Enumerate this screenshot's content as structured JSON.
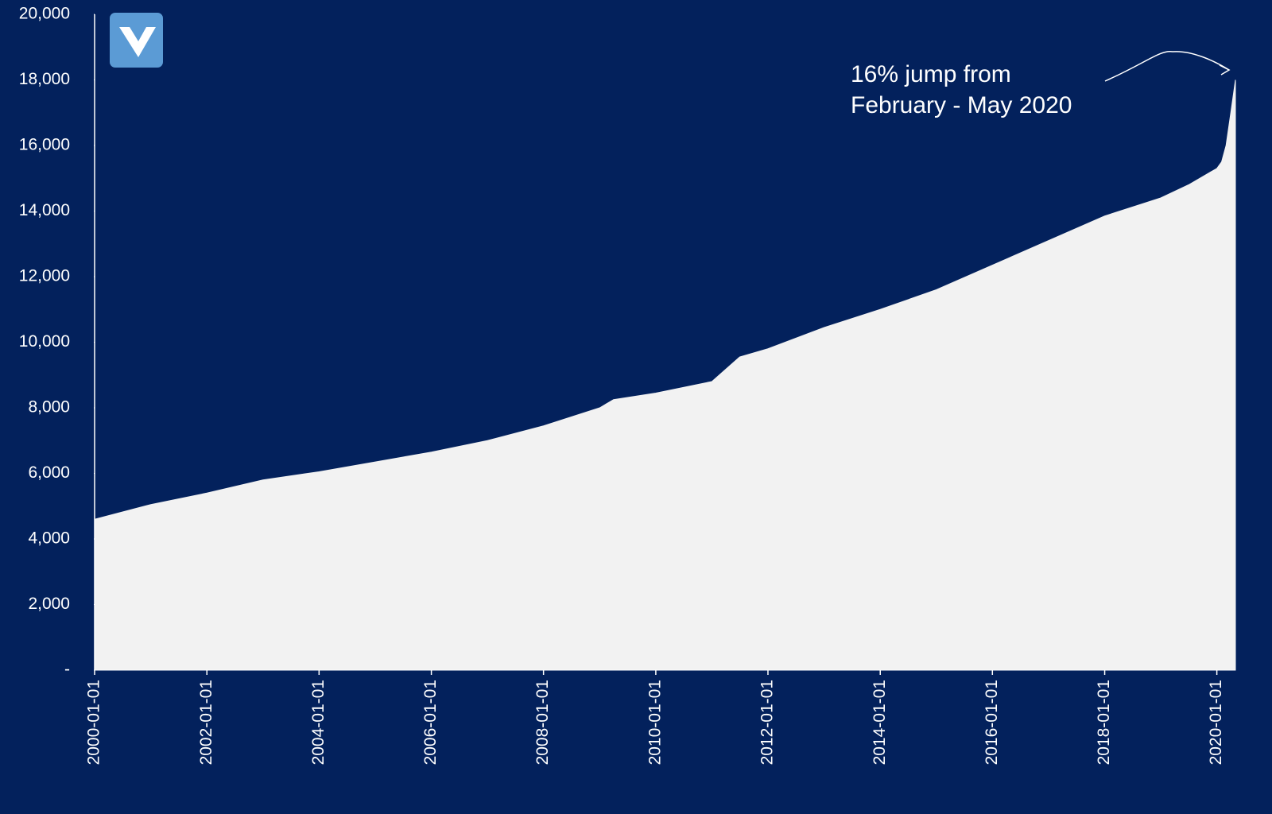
{
  "chart_data": {
    "type": "area",
    "annotation": [
      "16% jump from",
      "February - May 2020"
    ],
    "x": [
      "2000-01-01",
      "2001-01-01",
      "2002-01-01",
      "2003-01-01",
      "2004-01-01",
      "2005-01-01",
      "2006-01-01",
      "2007-01-01",
      "2008-01-01",
      "2009-01-01",
      "2009-04-01",
      "2010-01-01",
      "2011-01-01",
      "2011-07-01",
      "2012-01-01",
      "2013-01-01",
      "2014-01-01",
      "2015-01-01",
      "2016-01-01",
      "2017-01-01",
      "2018-01-01",
      "2019-01-01",
      "2019-07-01",
      "2020-01-01",
      "2020-02-01",
      "2020-03-01",
      "2020-04-01",
      "2020-05-01"
    ],
    "values": [
      4600,
      5050,
      5400,
      5800,
      6050,
      6350,
      6650,
      7000,
      7450,
      8000,
      8250,
      8450,
      8800,
      9550,
      9800,
      10450,
      11000,
      11600,
      12350,
      13100,
      13850,
      14400,
      14800,
      15300,
      15500,
      16000,
      17000,
      18000
    ],
    "color": "#f2f2f2",
    "xlim": [
      "2000-01-01",
      "2020-05-01"
    ],
    "xticks": [
      "2000-01-01",
      "2002-01-01",
      "2004-01-01",
      "2006-01-01",
      "2008-01-01",
      "2010-01-01",
      "2012-01-01",
      "2014-01-01",
      "2016-01-01",
      "2018-01-01",
      "2020-01-01"
    ],
    "ylim": [
      0,
      20000
    ],
    "yticks": [
      {
        "value": 0,
        "label": "-"
      },
      {
        "value": 2000,
        "label": "2,000"
      },
      {
        "value": 4000,
        "label": "4,000"
      },
      {
        "value": 6000,
        "label": "6,000"
      },
      {
        "value": 8000,
        "label": "8,000"
      },
      {
        "value": 10000,
        "label": "10,000"
      },
      {
        "value": 12000,
        "label": "12,000"
      },
      {
        "value": 14000,
        "label": "14,000"
      },
      {
        "value": 16000,
        "label": "16,000"
      },
      {
        "value": 18000,
        "label": "18,000"
      },
      {
        "value": 20000,
        "label": "20,000"
      }
    ]
  }
}
